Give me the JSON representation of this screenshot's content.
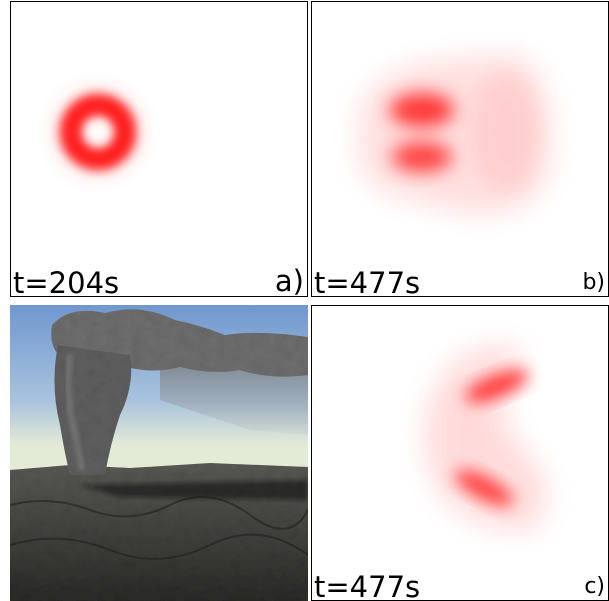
{
  "panels": {
    "a": {
      "time_label": "t=204s",
      "letter": "a)"
    },
    "b": {
      "time_label": "t=477s",
      "letter": "b)"
    },
    "c": {
      "time_label": "t=477s",
      "letter": "c)"
    }
  },
  "colors": {
    "density": "#ff0000",
    "sky_top": "#7fa6d6",
    "sky_bottom": "#e8ecd8",
    "ground": "#3a3a38",
    "plume": "#6b6b6b"
  }
}
